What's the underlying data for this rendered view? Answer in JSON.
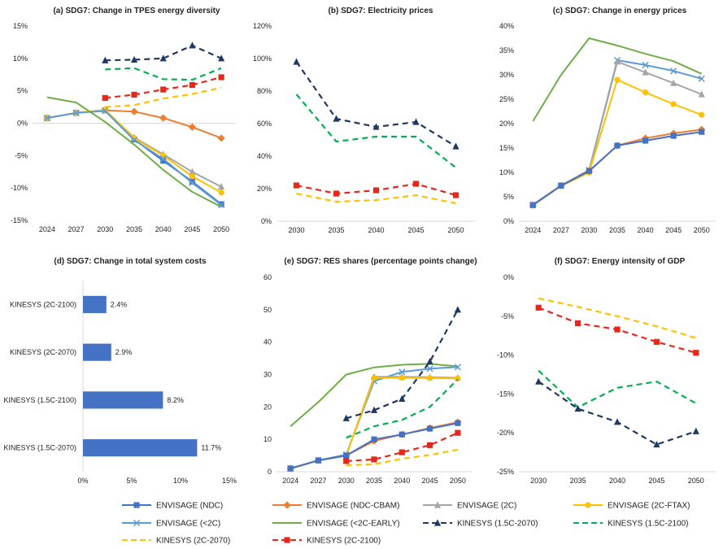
{
  "colors": {
    "ENVISAGE (NDC)": "#4472c4",
    "ENVISAGE (NDC-CBAM)": "#ed7d31",
    "ENVISAGE (2C)": "#a5a5a5",
    "ENVISAGE (2C-FTAX)": "#ffc000",
    "ENVISAGE (<2C)": "#5b9bd5",
    "ENVISAGE (<2C-EARLY)": "#70ad47",
    "KINESYS (1.5C-2070)": "#203864",
    "KINESYS (1.5C-2100)": "#00b050",
    "KINESYS (2C-2070)": "#ffc000",
    "KINESYS (2C-2100)": "#e8271c",
    "bar": "#4472c4",
    "grid": "#d9d9d9"
  },
  "legend": [
    {
      "name": "ENVISAGE (NDC)",
      "marker": "square",
      "dash": false
    },
    {
      "name": "ENVISAGE (NDC-CBAM)",
      "marker": "diamond",
      "dash": false
    },
    {
      "name": "ENVISAGE (2C)",
      "marker": "triangle",
      "dash": false
    },
    {
      "name": "ENVISAGE (2C-FTAX)",
      "marker": "circle",
      "dash": false
    },
    {
      "name": "ENVISAGE (<2C)",
      "marker": "x",
      "dash": false
    },
    {
      "name": "ENVISAGE (<2C-EARLY)",
      "marker": "none",
      "dash": false
    },
    {
      "name": "KINESYS (1.5C-2070)",
      "marker": "triangle",
      "dash": true
    },
    {
      "name": "KINESYS (1.5C-2100)",
      "marker": "none",
      "dash": true
    },
    {
      "name": "KINESYS (2C-2070)",
      "marker": "none",
      "dash": true
    },
    {
      "name": "KINESYS (2C-2100)",
      "marker": "square",
      "dash": true
    }
  ],
  "chart_data": [
    {
      "id": "a",
      "type": "line",
      "title": "(a) SDG7: Change in TPES energy diversity",
      "x": [
        "2024",
        "2027",
        "2030",
        "2035",
        "2040",
        "2045",
        "2050"
      ],
      "ylim": [
        -15,
        15
      ],
      "yticks": [
        -15,
        -10,
        -5,
        0,
        5,
        10,
        15
      ],
      "ysuffix": "%",
      "series": [
        {
          "name": "ENVISAGE (NDC)",
          "values": [
            0.8,
            1.6,
            2.0,
            -2.5,
            -5.8,
            -9.0,
            -12.5
          ]
        },
        {
          "name": "ENVISAGE (NDC-CBAM)",
          "values": [
            0.8,
            1.6,
            2.0,
            1.8,
            0.8,
            -0.6,
            -2.3
          ]
        },
        {
          "name": "ENVISAGE (2C)",
          "values": [
            0.8,
            1.6,
            2.0,
            -2.2,
            -4.8,
            -7.5,
            -9.8
          ]
        },
        {
          "name": "ENVISAGE (2C-FTAX)",
          "values": [
            0.8,
            1.6,
            2.1,
            -2.3,
            -5.0,
            -8.2,
            -10.7
          ]
        },
        {
          "name": "ENVISAGE (<2C)",
          "values": [
            0.8,
            1.6,
            1.9,
            -2.6,
            -5.5,
            -9.2,
            -12.6
          ]
        },
        {
          "name": "ENVISAGE (<2C-EARLY)",
          "values": [
            4.0,
            3.2,
            0.2,
            -3.3,
            -7.2,
            -10.6,
            -12.9
          ]
        },
        {
          "name": "KINESYS (1.5C-2070)",
          "values": [
            null,
            null,
            9.7,
            9.8,
            10.0,
            12.0,
            10.0
          ]
        },
        {
          "name": "KINESYS (1.5C-2100)",
          "values": [
            null,
            null,
            8.3,
            8.5,
            6.8,
            6.7,
            8.5
          ]
        },
        {
          "name": "KINESYS (2C-2070)",
          "values": [
            null,
            null,
            2.5,
            2.8,
            3.8,
            4.5,
            5.5
          ]
        },
        {
          "name": "KINESYS (2C-2100)",
          "values": [
            null,
            null,
            3.9,
            4.4,
            5.2,
            5.9,
            7.1
          ]
        }
      ]
    },
    {
      "id": "b",
      "type": "line",
      "title": "(b) SDG7: Electricity prices",
      "x": [
        "2030",
        "2035",
        "2040",
        "2045",
        "2050"
      ],
      "ylim": [
        0,
        120
      ],
      "yticks": [
        0,
        20,
        40,
        60,
        80,
        100,
        120
      ],
      "ysuffix": "%",
      "series": [
        {
          "name": "KINESYS (1.5C-2070)",
          "values": [
            98,
            63,
            58,
            61,
            46
          ]
        },
        {
          "name": "KINESYS (1.5C-2100)",
          "values": [
            78,
            49,
            52,
            52,
            33
          ]
        },
        {
          "name": "KINESYS (2C-2100)",
          "values": [
            22,
            17,
            19,
            23,
            16
          ]
        },
        {
          "name": "KINESYS (2C-2070)",
          "values": [
            17,
            12,
            13,
            16,
            11
          ]
        }
      ]
    },
    {
      "id": "c",
      "type": "line",
      "title": "(c) SDG7: Change in energy prices",
      "x": [
        "2024",
        "2027",
        "2030",
        "2035",
        "2040",
        "2045",
        "2050"
      ],
      "ylim": [
        0,
        40
      ],
      "yticks": [
        0,
        5,
        10,
        15,
        20,
        25,
        30,
        35,
        40
      ],
      "ysuffix": "%",
      "series": [
        {
          "name": "ENVISAGE (<2C-EARLY)",
          "values": [
            20.5,
            30.0,
            37.5,
            36.0,
            34.3,
            32.8,
            30.2
          ]
        },
        {
          "name": "ENVISAGE (<2C)",
          "values": [
            3.4,
            7.3,
            10.5,
            33.0,
            32.0,
            30.8,
            29.2
          ]
        },
        {
          "name": "ENVISAGE (2C)",
          "values": [
            3.4,
            7.3,
            10.4,
            32.7,
            30.5,
            28.3,
            26.0
          ]
        },
        {
          "name": "ENVISAGE (2C-FTAX)",
          "values": [
            3.3,
            7.2,
            10.0,
            29.0,
            26.4,
            24.0,
            21.8
          ]
        },
        {
          "name": "ENVISAGE (NDC-CBAM)",
          "values": [
            3.3,
            7.3,
            10.3,
            15.5,
            17.0,
            18.0,
            18.8
          ]
        },
        {
          "name": "ENVISAGE (NDC)",
          "values": [
            3.3,
            7.3,
            10.3,
            15.5,
            16.5,
            17.5,
            18.3
          ]
        }
      ]
    },
    {
      "id": "d",
      "type": "bar",
      "title": "(d) SDG7: Change in total system costs",
      "categories": [
        "KINESYS (2C-2100)",
        "KINESYS (2C-2070)",
        "KINESYS (1.5C-2100)",
        "KINESYS (1.5C-2070)"
      ],
      "values": [
        2.4,
        2.9,
        8.2,
        11.7
      ],
      "labels": [
        "2.4%",
        "2.9%",
        "8.2%",
        "11.7%"
      ],
      "ylim": [
        0,
        15
      ],
      "yticks": [
        0,
        5,
        10,
        15
      ],
      "ysuffix": "%"
    },
    {
      "id": "e",
      "type": "line",
      "title": "(e) SDG7: RES shares (percentage points change)",
      "x": [
        "2024",
        "2027",
        "2030",
        "2035",
        "2040",
        "2045",
        "2050"
      ],
      "ylim": [
        0,
        60
      ],
      "yticks": [
        0,
        10,
        20,
        30,
        40,
        50,
        60
      ],
      "ysuffix": "",
      "series": [
        {
          "name": "ENVISAGE (<2C-EARLY)",
          "values": [
            14.0,
            21.5,
            30.0,
            32.2,
            33.0,
            33.3,
            32.5
          ]
        },
        {
          "name": "ENVISAGE (<2C)",
          "values": [
            1.0,
            3.5,
            5.3,
            28.0,
            30.8,
            31.8,
            32.3
          ]
        },
        {
          "name": "ENVISAGE (2C)",
          "values": [
            1.0,
            3.5,
            5.0,
            29.3,
            29.3,
            29.2,
            29.0
          ]
        },
        {
          "name": "ENVISAGE (2C-FTAX)",
          "values": [
            1.0,
            3.5,
            5.0,
            29.0,
            29.0,
            28.9,
            28.8
          ]
        },
        {
          "name": "ENVISAGE (NDC-CBAM)",
          "values": [
            1.0,
            3.5,
            5.0,
            9.5,
            11.5,
            13.5,
            15.3
          ]
        },
        {
          "name": "ENVISAGE (NDC)",
          "values": [
            1.0,
            3.5,
            5.0,
            10.0,
            11.5,
            13.3,
            15.0
          ]
        },
        {
          "name": "KINESYS (1.5C-2070)",
          "values": [
            null,
            null,
            16.5,
            19.0,
            22.5,
            34.0,
            50.0
          ]
        },
        {
          "name": "KINESYS (1.5C-2100)",
          "values": [
            null,
            null,
            10.5,
            14.0,
            16.0,
            20.0,
            28.5
          ]
        },
        {
          "name": "KINESYS (2C-2100)",
          "values": [
            null,
            null,
            3.3,
            3.8,
            6.0,
            8.2,
            12.0
          ]
        },
        {
          "name": "KINESYS (2C-2070)",
          "values": [
            null,
            null,
            2.0,
            2.3,
            4.0,
            5.2,
            6.8
          ]
        }
      ]
    },
    {
      "id": "f",
      "type": "line",
      "title": "(f) SDG7: Energy intensity of GDP",
      "x": [
        "2030",
        "2035",
        "2040",
        "2045",
        "2050"
      ],
      "ylim": [
        -25,
        0
      ],
      "yticks": [
        -25,
        -20,
        -15,
        -10,
        -5,
        0
      ],
      "ysuffix": "%",
      "series": [
        {
          "name": "KINESYS (2C-2070)",
          "values": [
            -2.7,
            -3.8,
            -5.0,
            -6.3,
            -7.8
          ]
        },
        {
          "name": "KINESYS (2C-2100)",
          "values": [
            -3.9,
            -5.9,
            -6.7,
            -8.3,
            -9.7
          ]
        },
        {
          "name": "KINESYS (1.5C-2100)",
          "values": [
            -12.0,
            -16.7,
            -14.2,
            -13.4,
            -16.2
          ]
        },
        {
          "name": "KINESYS (1.5C-2070)",
          "values": [
            -13.4,
            -16.9,
            -18.6,
            -21.5,
            -19.8
          ]
        }
      ]
    }
  ]
}
